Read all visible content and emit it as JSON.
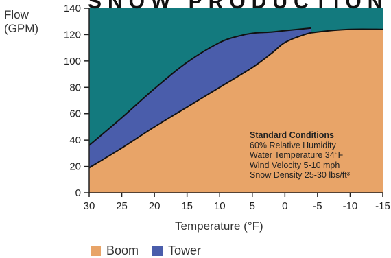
{
  "chart_data": {
    "type": "area",
    "title": "SNOW PRODUCTION",
    "ylabel_line1": "Flow",
    "ylabel_line2": "(GPM)",
    "xlabel": "Temperature (°F)",
    "x_ticks": [
      30,
      25,
      20,
      15,
      10,
      5,
      0,
      -5,
      -10,
      -15
    ],
    "y_ticks": [
      0,
      20,
      40,
      60,
      80,
      100,
      120,
      140
    ],
    "xlim": [
      30,
      -15
    ],
    "ylim": [
      0,
      140
    ],
    "series": [
      {
        "name": "Boom",
        "color": "#e8a468",
        "x": [
          30,
          25,
          20,
          15,
          10,
          5,
          2,
          0,
          -3,
          -5,
          -10,
          -15
        ],
        "values": [
          19,
          34,
          50,
          65,
          80,
          95,
          106,
          114,
          120,
          122,
          124,
          124
        ]
      },
      {
        "name": "Tower",
        "color": "#4a5dab",
        "x": [
          30,
          25,
          20,
          15,
          10,
          7,
          5,
          2,
          0,
          -4
        ],
        "values": [
          36,
          57,
          79,
          99,
          114,
          119,
          121,
          122,
          123,
          125
        ]
      }
    ],
    "background_color": "#137a7e",
    "annotation": {
      "heading": "Standard Conditions",
      "lines": [
        "60% Relative Humidity",
        "Water Temperature 34°F",
        "Wind Velocity 5-10 mph",
        "Snow Density 25-30 lbs/ft³"
      ]
    },
    "legend": [
      {
        "label": "Boom",
        "color": "#e8a468"
      },
      {
        "label": "Tower",
        "color": "#4a5dab"
      }
    ],
    "legend_position": "bottom-left",
    "grid": false
  }
}
